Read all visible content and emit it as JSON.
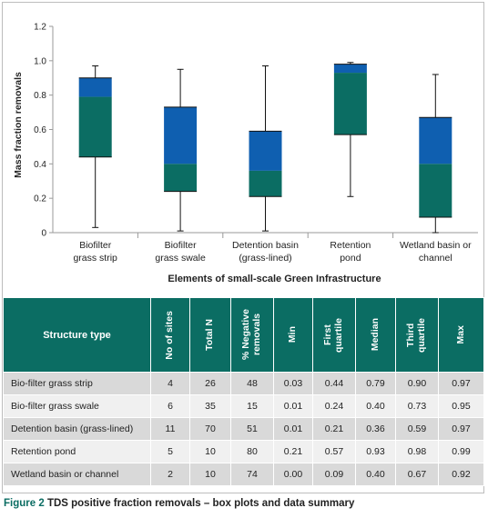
{
  "chart_data": {
    "type": "boxplot",
    "xlabel": "Elements of small-scale Green Infrastructure",
    "ylabel": "Mass fraction removals",
    "ylim": [
      0,
      1.2
    ],
    "yticks": [
      "0",
      "0.2",
      "0.4",
      "0.6",
      "0.8",
      "1.0",
      "1.2"
    ],
    "grid": false,
    "colors": {
      "lower_box": "#0b6d63",
      "upper_box": "#0f5fb0",
      "whisker": "#111111",
      "axis": "#9a9a9a"
    },
    "categories": [
      {
        "label_lines": [
          "Biofilter",
          "grass strip"
        ],
        "min": 0.03,
        "q1": 0.44,
        "median": 0.79,
        "q3": 0.9,
        "max": 0.97
      },
      {
        "label_lines": [
          "Biofilter",
          "grass swale"
        ],
        "min": 0.01,
        "q1": 0.24,
        "median": 0.4,
        "q3": 0.73,
        "max": 0.95
      },
      {
        "label_lines": [
          "Detention basin",
          "(grass-lined)"
        ],
        "min": 0.01,
        "q1": 0.21,
        "median": 0.36,
        "q3": 0.59,
        "max": 0.97
      },
      {
        "label_lines": [
          "Retention",
          "pond"
        ],
        "min": 0.21,
        "q1": 0.57,
        "median": 0.93,
        "q3": 0.98,
        "max": 0.99
      },
      {
        "label_lines": [
          "Wetland basin or",
          "channel"
        ],
        "min": 0.0,
        "q1": 0.09,
        "median": 0.4,
        "q3": 0.67,
        "max": 0.92
      }
    ]
  },
  "table": {
    "headers": [
      {
        "lines": [
          "Structure type"
        ],
        "rotated": false
      },
      {
        "lines": [
          "No of sites"
        ],
        "rotated": true
      },
      {
        "lines": [
          "Total N"
        ],
        "rotated": true
      },
      {
        "lines": [
          "% Negative",
          "removals"
        ],
        "rotated": true
      },
      {
        "lines": [
          "Min"
        ],
        "rotated": true
      },
      {
        "lines": [
          "First",
          "quartile"
        ],
        "rotated": true
      },
      {
        "lines": [
          "Median"
        ],
        "rotated": true
      },
      {
        "lines": [
          "Third",
          "quartile"
        ],
        "rotated": true
      },
      {
        "lines": [
          "Max"
        ],
        "rotated": true
      }
    ],
    "rows": [
      [
        "Bio-filter grass strip",
        "4",
        "26",
        "48",
        "0.03",
        "0.44",
        "0.79",
        "0.90",
        "0.97"
      ],
      [
        "Bio-filter grass swale",
        "6",
        "35",
        "15",
        "0.01",
        "0.24",
        "0.40",
        "0.73",
        "0.95"
      ],
      [
        "Detention basin (grass-lined)",
        "11",
        "70",
        "51",
        "0.01",
        "0.21",
        "0.36",
        "0.59",
        "0.97"
      ],
      [
        "Retention pond",
        "5",
        "10",
        "80",
        "0.21",
        "0.57",
        "0.93",
        "0.98",
        "0.99"
      ],
      [
        "Wetland basin or channel",
        "2",
        "10",
        "74",
        "0.00",
        "0.09",
        "0.40",
        "0.67",
        "0.92"
      ]
    ]
  },
  "caption": {
    "label": "Figure 2",
    "text": "TDS positive fraction removals – box plots and data summary"
  }
}
